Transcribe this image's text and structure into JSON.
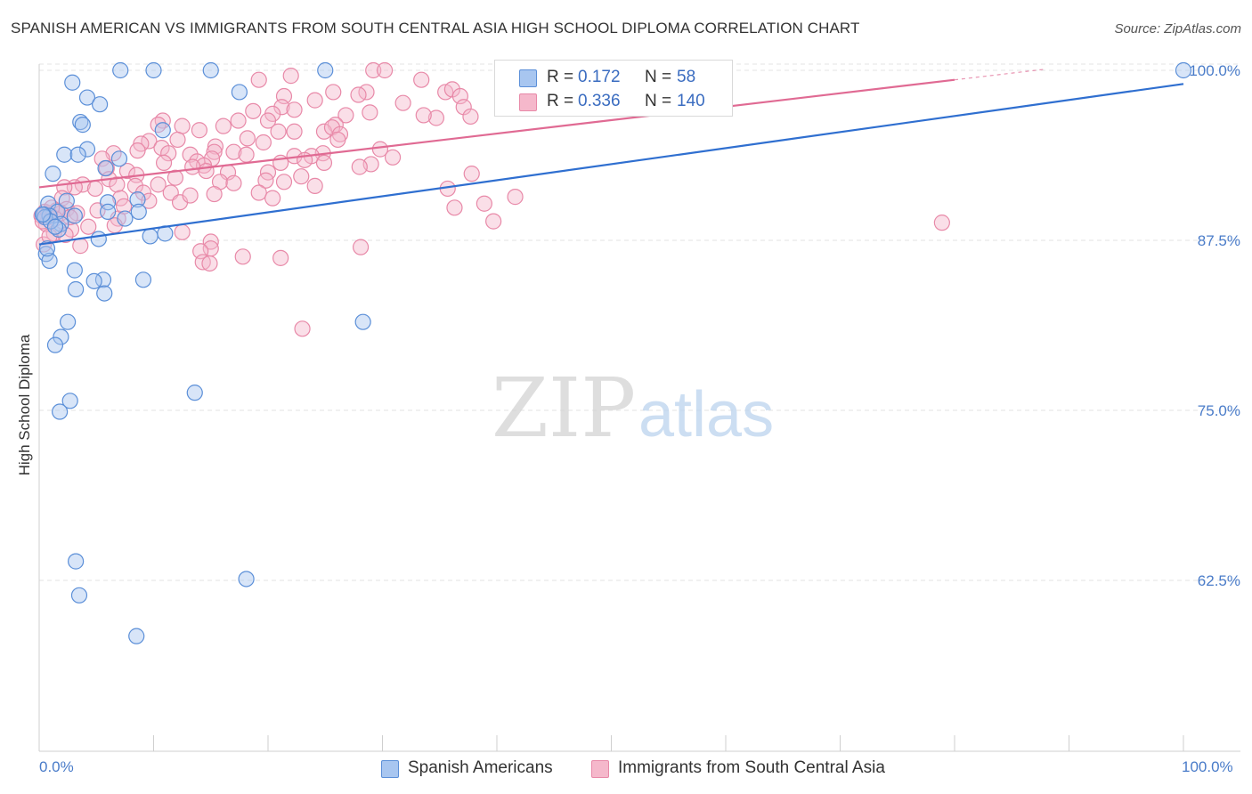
{
  "title": "SPANISH AMERICAN VS IMMIGRANTS FROM SOUTH CENTRAL ASIA HIGH SCHOOL DIPLOMA CORRELATION CHART",
  "source": "Source: ZipAtlas.com",
  "watermark": {
    "zip": "ZIP",
    "atlas": "atlas"
  },
  "legend_top": {
    "rows": [
      {
        "r_label": "R =",
        "r_value": "0.172",
        "n_label": "N =",
        "n_value": "58"
      },
      {
        "r_label": "R =",
        "r_value": "0.336",
        "n_label": "N =",
        "n_value": "140"
      }
    ]
  },
  "legend_bottom": {
    "items": [
      {
        "label": "Spanish Americans"
      },
      {
        "label": "Immigrants from South Central Asia"
      }
    ]
  },
  "colors": {
    "blue_fill": "#a8c6f0",
    "blue_stroke": "#5b8fd8",
    "blue_line": "#2f6fd0",
    "pink_fill": "#f5b8cb",
    "pink_stroke": "#e889a8",
    "pink_line": "#e06a93",
    "tick_label": "#4a7cc9",
    "grid": "#e3e3e3"
  },
  "chart_data": {
    "type": "scatter",
    "title": "SPANISH AMERICAN VS IMMIGRANTS FROM SOUTH CENTRAL ASIA HIGH SCHOOL DIPLOMA CORRELATION CHART",
    "xlabel": "",
    "ylabel": "High School Diploma",
    "xlim": [
      0,
      100
    ],
    "ylim": [
      50,
      101
    ],
    "x_tick_labels": [
      "0.0%",
      "100.0%"
    ],
    "y_ticks": [
      {
        "value": 62.5,
        "label": "62.5%"
      },
      {
        "value": 75,
        "label": "75.0%"
      },
      {
        "value": 87.5,
        "label": "87.5%"
      },
      {
        "value": 100,
        "label": "100.0%"
      }
    ],
    "grid": true,
    "series": [
      {
        "name": "Spanish Americans",
        "color": "blue",
        "r": 0.172,
        "n": 58,
        "trend": {
          "x": [
            0,
            100
          ],
          "y": [
            87.2,
            99.0
          ]
        },
        "points": [
          [
            7.1,
            100.0
          ],
          [
            10.0,
            100.0
          ],
          [
            15.0,
            100.0
          ],
          [
            25.0,
            100.0
          ],
          [
            100.0,
            100.0
          ],
          [
            2.9,
            99.1
          ],
          [
            17.5,
            98.4
          ],
          [
            4.2,
            98.0
          ],
          [
            5.3,
            97.5
          ],
          [
            3.6,
            96.2
          ],
          [
            3.8,
            96.0
          ],
          [
            10.8,
            95.6
          ],
          [
            4.2,
            94.2
          ],
          [
            2.2,
            93.8
          ],
          [
            3.4,
            93.8
          ],
          [
            7.0,
            93.5
          ],
          [
            5.8,
            92.8
          ],
          [
            1.2,
            92.4
          ],
          [
            8.6,
            90.5
          ],
          [
            6.0,
            90.3
          ],
          [
            0.8,
            90.2
          ],
          [
            1.6,
            89.6
          ],
          [
            0.4,
            89.4
          ],
          [
            0.9,
            89.3
          ],
          [
            6.0,
            89.6
          ],
          [
            3.1,
            89.3
          ],
          [
            8.7,
            89.6
          ],
          [
            7.5,
            89.1
          ],
          [
            1.9,
            88.7
          ],
          [
            1.7,
            88.3
          ],
          [
            11.0,
            88.0
          ],
          [
            9.7,
            87.8
          ],
          [
            5.2,
            87.6
          ],
          [
            0.6,
            86.5
          ],
          [
            0.9,
            86.0
          ],
          [
            3.1,
            85.3
          ],
          [
            9.1,
            84.6
          ],
          [
            5.6,
            84.6
          ],
          [
            4.8,
            84.5
          ],
          [
            3.2,
            83.9
          ],
          [
            5.7,
            83.6
          ],
          [
            2.5,
            81.5
          ],
          [
            28.3,
            81.5
          ],
          [
            1.9,
            80.4
          ],
          [
            1.4,
            79.8
          ],
          [
            13.6,
            76.3
          ],
          [
            2.7,
            75.7
          ],
          [
            1.8,
            74.9
          ],
          [
            18.1,
            62.6
          ],
          [
            3.2,
            63.9
          ],
          [
            3.5,
            61.4
          ],
          [
            8.5,
            58.4
          ],
          [
            0.5,
            89.2
          ],
          [
            1.0,
            88.9
          ],
          [
            0.3,
            89.4
          ],
          [
            1.4,
            88.5
          ],
          [
            2.4,
            90.4
          ],
          [
            0.7,
            86.9
          ]
        ]
      },
      {
        "name": "Immigrants from South Central Asia",
        "color": "pink",
        "r": 0.336,
        "n": 140,
        "trend": {
          "x": [
            0,
            80
          ],
          "y": [
            91.4,
            99.3
          ]
        },
        "points": [
          [
            29.2,
            100.0
          ],
          [
            30.2,
            100.0
          ],
          [
            22.0,
            99.6
          ],
          [
            19.2,
            99.3
          ],
          [
            33.4,
            99.3
          ],
          [
            25.7,
            98.4
          ],
          [
            28.6,
            98.4
          ],
          [
            35.5,
            98.4
          ],
          [
            36.1,
            98.6
          ],
          [
            21.4,
            98.1
          ],
          [
            27.9,
            98.2
          ],
          [
            36.8,
            98.1
          ],
          [
            24.1,
            97.8
          ],
          [
            31.8,
            97.6
          ],
          [
            37.1,
            97.3
          ],
          [
            21.2,
            97.3
          ],
          [
            22.3,
            97.1
          ],
          [
            28.9,
            96.9
          ],
          [
            18.7,
            97.0
          ],
          [
            20.4,
            96.8
          ],
          [
            26.8,
            96.7
          ],
          [
            37.7,
            96.6
          ],
          [
            34.7,
            96.5
          ],
          [
            17.4,
            96.3
          ],
          [
            20.0,
            96.3
          ],
          [
            10.8,
            96.3
          ],
          [
            10.4,
            96.0
          ],
          [
            12.5,
            95.9
          ],
          [
            16.1,
            95.9
          ],
          [
            25.9,
            96.0
          ],
          [
            24.9,
            95.5
          ],
          [
            20.9,
            95.5
          ],
          [
            14.0,
            95.6
          ],
          [
            22.3,
            95.5
          ],
          [
            25.6,
            95.8
          ],
          [
            26.3,
            95.3
          ],
          [
            18.2,
            95.0
          ],
          [
            9.6,
            94.8
          ],
          [
            12.1,
            94.9
          ],
          [
            26.1,
            94.9
          ],
          [
            19.6,
            94.7
          ],
          [
            8.9,
            94.6
          ],
          [
            15.4,
            94.4
          ],
          [
            10.7,
            94.3
          ],
          [
            8.6,
            94.1
          ],
          [
            15.3,
            94.0
          ],
          [
            17.0,
            94.0
          ],
          [
            24.8,
            93.9
          ],
          [
            29.8,
            94.2
          ],
          [
            6.5,
            93.9
          ],
          [
            11.3,
            93.9
          ],
          [
            13.2,
            93.8
          ],
          [
            18.1,
            93.8
          ],
          [
            22.3,
            93.7
          ],
          [
            23.8,
            93.7
          ],
          [
            5.5,
            93.5
          ],
          [
            15.1,
            93.5
          ],
          [
            13.8,
            93.3
          ],
          [
            21.1,
            93.2
          ],
          [
            23.2,
            93.4
          ],
          [
            24.9,
            93.2
          ],
          [
            29.0,
            93.1
          ],
          [
            10.9,
            93.2
          ],
          [
            14.4,
            93.0
          ],
          [
            13.4,
            92.9
          ],
          [
            5.9,
            92.8
          ],
          [
            7.7,
            92.6
          ],
          [
            14.6,
            92.6
          ],
          [
            16.5,
            92.5
          ],
          [
            20.0,
            92.5
          ],
          [
            28.0,
            92.9
          ],
          [
            37.8,
            92.4
          ],
          [
            8.5,
            92.3
          ],
          [
            11.9,
            92.1
          ],
          [
            6.1,
            92.0
          ],
          [
            19.8,
            91.9
          ],
          [
            15.8,
            91.8
          ],
          [
            21.4,
            91.8
          ],
          [
            17.0,
            91.7
          ],
          [
            3.8,
            91.6
          ],
          [
            6.8,
            91.6
          ],
          [
            8.4,
            91.5
          ],
          [
            10.4,
            91.6
          ],
          [
            3.1,
            91.4
          ],
          [
            2.2,
            91.4
          ],
          [
            4.9,
            91.3
          ],
          [
            24.1,
            91.5
          ],
          [
            35.7,
            91.3
          ],
          [
            19.2,
            91.0
          ],
          [
            9.1,
            91.0
          ],
          [
            11.5,
            91.0
          ],
          [
            15.3,
            90.9
          ],
          [
            7.1,
            90.6
          ],
          [
            2.0,
            90.6
          ],
          [
            41.6,
            90.7
          ],
          [
            9.6,
            90.4
          ],
          [
            12.3,
            90.3
          ],
          [
            20.4,
            90.6
          ],
          [
            38.9,
            90.2
          ],
          [
            36.3,
            89.9
          ],
          [
            2.4,
            89.8
          ],
          [
            1.5,
            89.7
          ],
          [
            5.1,
            89.7
          ],
          [
            0.5,
            89.6
          ],
          [
            1.9,
            89.5
          ],
          [
            3.3,
            89.5
          ],
          [
            0.9,
            89.4
          ],
          [
            0.2,
            89.3
          ],
          [
            6.9,
            89.1
          ],
          [
            39.7,
            88.9
          ],
          [
            78.9,
            88.8
          ],
          [
            6.6,
            88.6
          ],
          [
            2.8,
            88.3
          ],
          [
            12.5,
            88.1
          ],
          [
            1.3,
            88.0
          ],
          [
            2.3,
            87.9
          ],
          [
            15.0,
            87.4
          ],
          [
            0.4,
            87.2
          ],
          [
            3.6,
            87.1
          ],
          [
            28.1,
            87.0
          ],
          [
            15.0,
            86.9
          ],
          [
            14.1,
            86.7
          ],
          [
            17.8,
            86.3
          ],
          [
            21.1,
            86.2
          ],
          [
            14.3,
            85.9
          ],
          [
            14.9,
            85.8
          ],
          [
            23.0,
            81.0
          ],
          [
            0.8,
            89.5
          ],
          [
            1.4,
            89.1
          ],
          [
            0.6,
            88.7
          ],
          [
            1.1,
            89.9
          ],
          [
            0.3,
            88.9
          ],
          [
            2.7,
            89.2
          ],
          [
            4.3,
            88.5
          ],
          [
            0.9,
            87.8
          ],
          [
            7.4,
            90.0
          ],
          [
            13.2,
            90.8
          ],
          [
            22.9,
            92.2
          ],
          [
            30.9,
            93.6
          ],
          [
            33.6,
            96.7
          ]
        ]
      }
    ]
  }
}
